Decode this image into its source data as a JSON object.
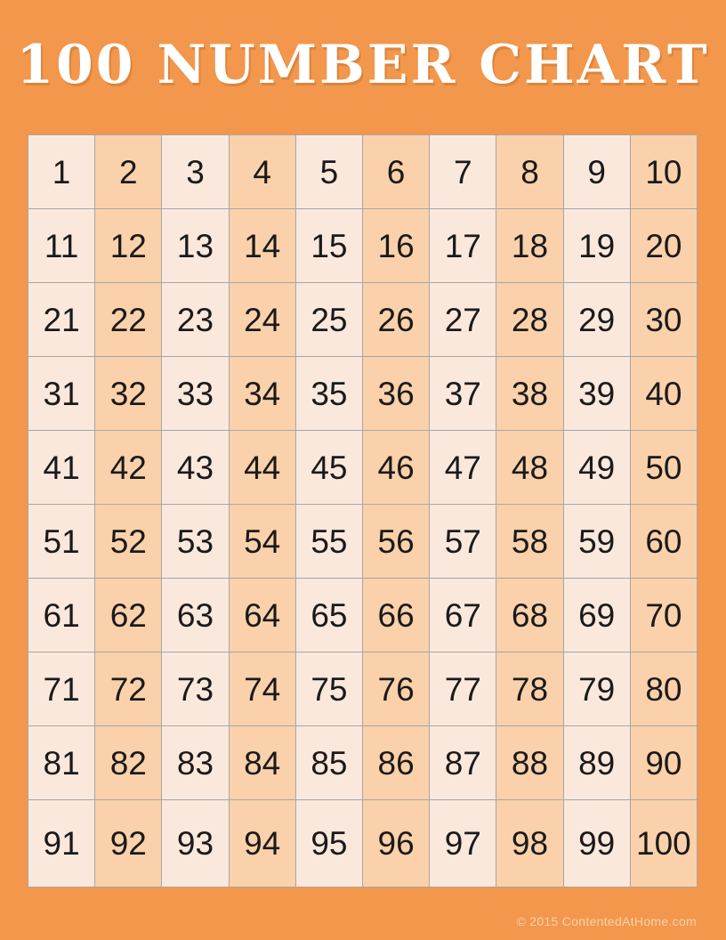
{
  "page": {
    "title": "100 NUMBER CHART",
    "footer": "© 2015 ContentedAtHome.com"
  },
  "colors": {
    "page_bg": "#F2974C",
    "cell_light": "#FBE8DC",
    "cell_dark": "#FAD1AA",
    "grid_line": "#A6A6A6",
    "number_text": "#1A1A1A",
    "title_text": "#FFFFFF",
    "footer_text": "#FFFFFF8C"
  },
  "grid": {
    "rows": 10,
    "cols": 10,
    "numbers": [
      1,
      2,
      3,
      4,
      5,
      6,
      7,
      8,
      9,
      10,
      11,
      12,
      13,
      14,
      15,
      16,
      17,
      18,
      19,
      20,
      21,
      22,
      23,
      24,
      25,
      26,
      27,
      28,
      29,
      30,
      31,
      32,
      33,
      34,
      35,
      36,
      37,
      38,
      39,
      40,
      41,
      42,
      43,
      44,
      45,
      46,
      47,
      48,
      49,
      50,
      51,
      52,
      53,
      54,
      55,
      56,
      57,
      58,
      59,
      60,
      61,
      62,
      63,
      64,
      65,
      66,
      67,
      68,
      69,
      70,
      71,
      72,
      73,
      74,
      75,
      76,
      77,
      78,
      79,
      80,
      81,
      82,
      83,
      84,
      85,
      86,
      87,
      88,
      89,
      90,
      91,
      92,
      93,
      94,
      95,
      96,
      97,
      98,
      99,
      100
    ]
  }
}
